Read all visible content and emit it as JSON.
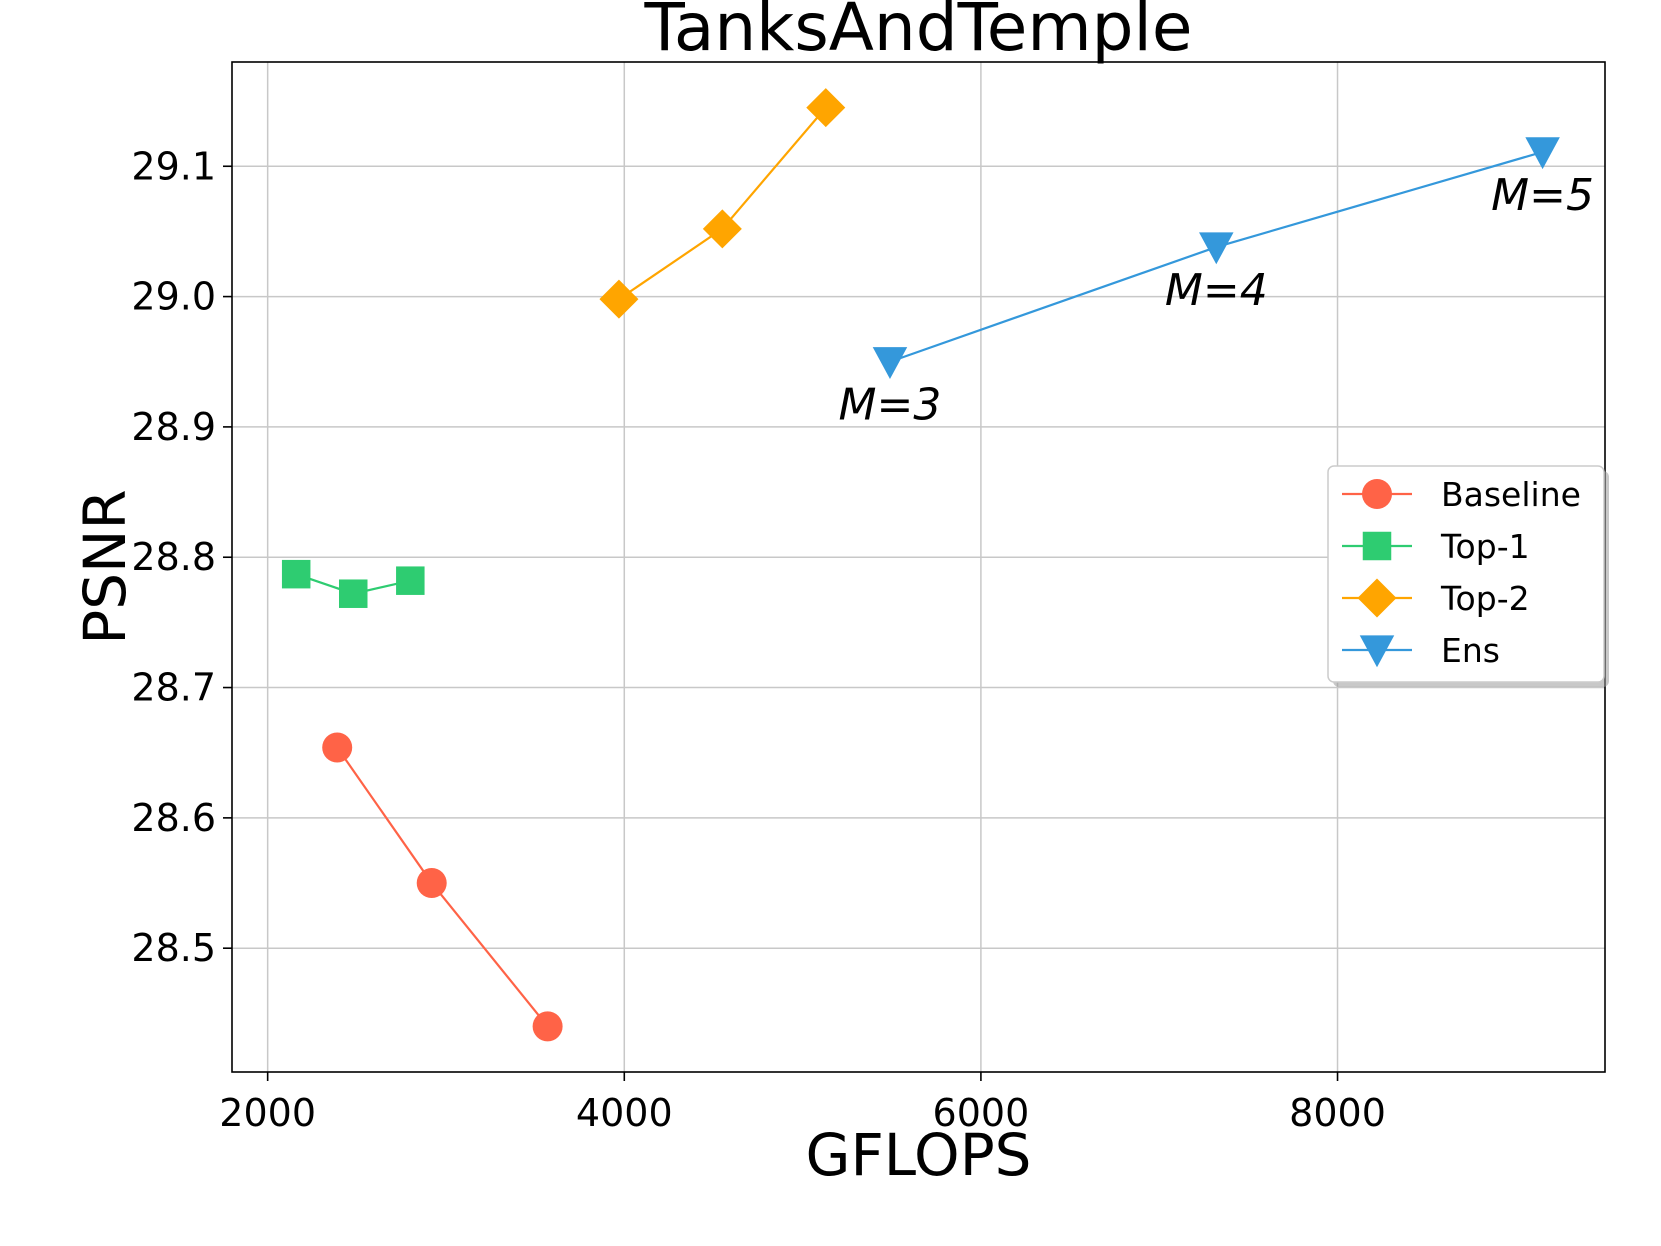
{
  "chart_data": {
    "type": "line",
    "title": "TanksAndTemple",
    "xlabel": "GFLOPS",
    "ylabel": "PSNR",
    "xlim": [
      1800,
      9500
    ],
    "ylim": [
      28.405,
      29.18
    ],
    "xticks": [
      2000,
      4000,
      6000,
      8000
    ],
    "xtick_labels": [
      "2000",
      "4000",
      "6000",
      "8000"
    ],
    "yticks": [
      28.5,
      28.6,
      28.7,
      28.8,
      28.9,
      29.0,
      29.1
    ],
    "ytick_labels": [
      "28.5",
      "28.6",
      "28.7",
      "28.8",
      "28.9",
      "29.0",
      "29.1"
    ],
    "grid": true,
    "legend_position": "center-right",
    "series": [
      {
        "name": "Baseline",
        "marker": "circle",
        "color": "#ff6347",
        "x": [
          2390,
          2920,
          3570
        ],
        "y": [
          28.654,
          28.55,
          28.44
        ]
      },
      {
        "name": "Top-1",
        "marker": "square",
        "color": "#2ecc71",
        "x": [
          2160,
          2480,
          2800
        ],
        "y": [
          28.787,
          28.772,
          28.782
        ]
      },
      {
        "name": "Top-2",
        "marker": "diamond",
        "color": "#ffa500",
        "x": [
          3970,
          4550,
          5130
        ],
        "y": [
          28.998,
          29.052,
          29.145
        ]
      },
      {
        "name": "Ens",
        "marker": "triangle-down",
        "color": "#3498db",
        "x": [
          5490,
          7320,
          9150
        ],
        "y": [
          28.95,
          29.038,
          29.111
        ]
      }
    ],
    "annotations": [
      {
        "text": "M=3",
        "x": 5490,
        "y": 28.95
      },
      {
        "text": "M=4",
        "x": 7320,
        "y": 29.038
      },
      {
        "text": "M=5",
        "x": 9150,
        "y": 29.111
      }
    ]
  }
}
